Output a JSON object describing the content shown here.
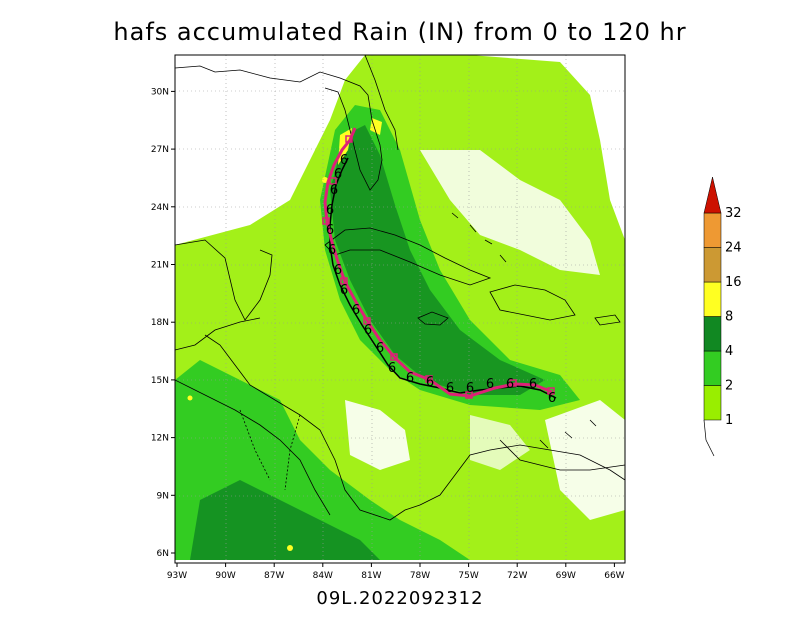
{
  "title": "hafs accumulated Rain (IN) from 0 to 120 hr",
  "subtitle": "09L.2022092312",
  "axes": {
    "x_ticks": [
      "93W",
      "90W",
      "87W",
      "84W",
      "81W",
      "78W",
      "75W",
      "72W",
      "69W",
      "66W"
    ],
    "y_ticks": [
      "6N",
      "9N",
      "12N",
      "15N",
      "18N",
      "21N",
      "24N",
      "27N",
      "30N"
    ]
  },
  "colorbar": {
    "labels": [
      "1",
      "2",
      "4",
      "8",
      "16",
      "24",
      "32"
    ],
    "colors": [
      "#99ee00",
      "#33cc22",
      "#118822",
      "#ffff22",
      "#cc9933",
      "#ee9933",
      "#cc1100"
    ]
  },
  "track": {
    "forecast_symbol": "6",
    "colors": {
      "track_line": "#000000",
      "marker": "#dd2277"
    }
  }
}
